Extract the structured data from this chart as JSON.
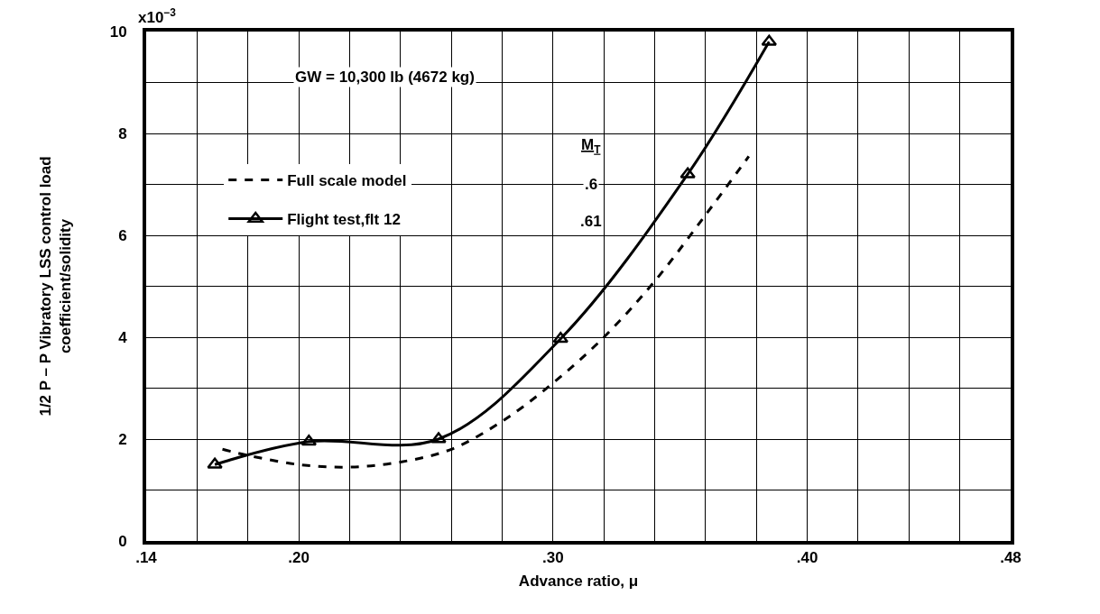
{
  "chart_data": {
    "type": "line",
    "xlabel": "Advance ratio, μ",
    "ylabel": "1/2 P – P Vibratory LSS control load\ncoefficient/solidity",
    "xlim": [
      0.14,
      0.48
    ],
    "xticks": [
      {
        "value": 0.14,
        "label": ".14"
      },
      {
        "value": 0.16,
        "label": null
      },
      {
        "value": 0.18,
        "label": null
      },
      {
        "value": 0.2,
        "label": ".20"
      },
      {
        "value": 0.22,
        "label": null
      },
      {
        "value": 0.24,
        "label": null
      },
      {
        "value": 0.26,
        "label": null
      },
      {
        "value": 0.28,
        "label": null
      },
      {
        "value": 0.3,
        "label": ".30"
      },
      {
        "value": 0.32,
        "label": null
      },
      {
        "value": 0.34,
        "label": null
      },
      {
        "value": 0.36,
        "label": null
      },
      {
        "value": 0.38,
        "label": null
      },
      {
        "value": 0.4,
        "label": ".40"
      },
      {
        "value": 0.42,
        "label": null
      },
      {
        "value": 0.44,
        "label": null
      },
      {
        "value": 0.46,
        "label": null
      },
      {
        "value": 0.48,
        "label": ".48"
      }
    ],
    "ylim": [
      0,
      10
    ],
    "yticks": [
      0,
      {
        "value": 1,
        "label": null
      },
      2,
      {
        "value": 3,
        "label": null
      },
      4,
      {
        "value": 5,
        "label": null
      },
      6,
      {
        "value": 7,
        "label": null
      },
      8,
      {
        "value": 9,
        "label": null
      },
      10
    ],
    "grid": true,
    "legend": "top left",
    "series": [
      {
        "name": "Full scale model",
        "color": "#000000",
        "line_style": "dashed",
        "marker": "none",
        "x": [
          0.17,
          0.18,
          0.2,
          0.22,
          0.24,
          0.26,
          0.28,
          0.3,
          0.32,
          0.34,
          0.36,
          0.377
        ],
        "values": [
          1.8,
          1.68,
          1.5,
          1.45,
          1.55,
          1.8,
          2.35,
          3.1,
          4.0,
          5.1,
          6.4,
          7.55
        ]
      },
      {
        "name": "Flight test,flt 12",
        "color": "#000000",
        "line_style": "solid",
        "marker": "triangle",
        "x": [
          0.167,
          0.204,
          0.255,
          0.303,
          0.353,
          0.385
        ],
        "values": [
          1.5,
          1.95,
          2.0,
          3.97,
          7.2,
          9.8
        ]
      }
    ],
    "annotations": [
      "GW = 10,300 lb (4672 kg)",
      "M$_{T}$",
      ".6",
      ".61",
      "x10$^{−3}$"
    ]
  }
}
